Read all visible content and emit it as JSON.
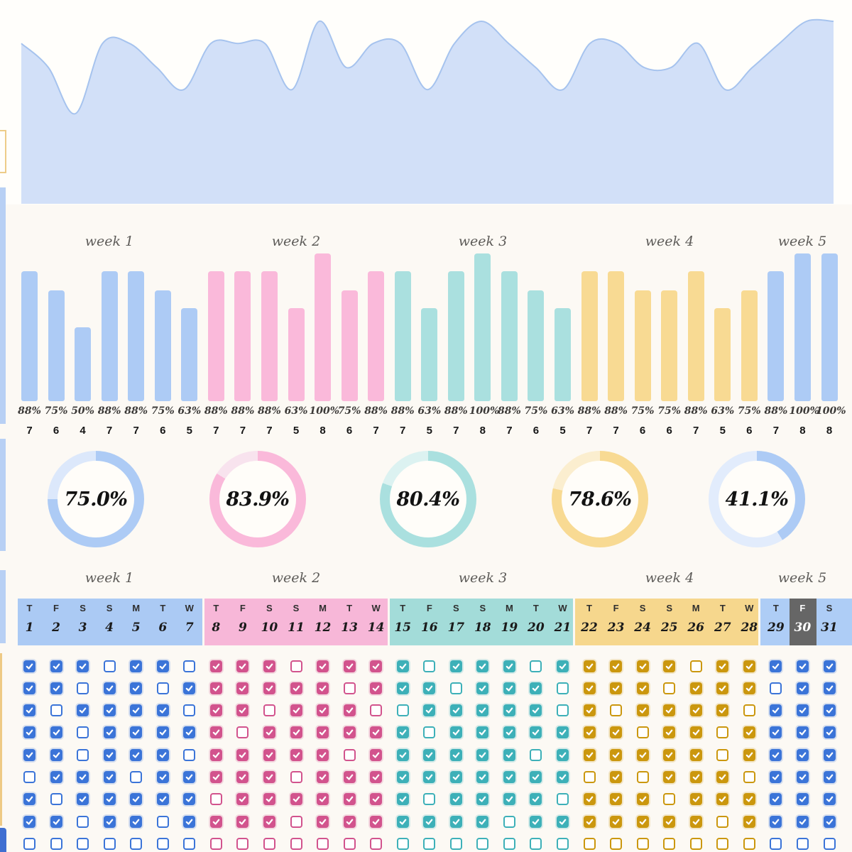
{
  "page": {
    "background": "#fcf9f4",
    "panel_background": "#fffefb",
    "donut_hole_background": "#fffdf9"
  },
  "weeks": [
    {
      "label": "week 1",
      "bar_color": "#adcbf5",
      "donut_remainder": "#dce8fb",
      "checkbox_color": "#3b74d8",
      "band_color": "#abcaf4",
      "donut_value": 75.0,
      "donut_label": "75.0%"
    },
    {
      "label": "week 2",
      "bar_color": "#fab9da",
      "donut_remainder": "#f8e3ee",
      "checkbox_color": "#d2538d",
      "band_color": "#f7b7d8",
      "donut_value": 83.9,
      "donut_label": "83.9%"
    },
    {
      "label": "week 3",
      "bar_color": "#aae0df",
      "donut_remainder": "#dcf2f1",
      "checkbox_color": "#3db0b8",
      "band_color": "#a3dcd9",
      "donut_value": 80.4,
      "donut_label": "80.4%"
    },
    {
      "label": "week 4",
      "bar_color": "#f8da93",
      "donut_remainder": "#fbeecf",
      "checkbox_color": "#cb970e",
      "band_color": "#f6d78d",
      "donut_value": 78.6,
      "donut_label": "78.6%"
    },
    {
      "label": "week 5",
      "bar_color": "#adcbf5",
      "donut_remainder": "#e2ecfc",
      "checkbox_color": "#3b74d8",
      "band_color": "#aecdf6",
      "donut_value": 41.1,
      "donut_label": "41.1%"
    }
  ],
  "chart_data": [
    {
      "type": "area",
      "name": "daily-completion-trend",
      "x": [
        1,
        2,
        3,
        4,
        5,
        6,
        7,
        8,
        9,
        10,
        11,
        12,
        13,
        14,
        15,
        16,
        17,
        18,
        19,
        20,
        21,
        22,
        23,
        24,
        25,
        26,
        27,
        28,
        29,
        30,
        31
      ],
      "values": [
        88,
        75,
        50,
        88,
        88,
        75,
        63,
        88,
        88,
        88,
        63,
        100,
        75,
        88,
        88,
        63,
        88,
        100,
        88,
        75,
        63,
        88,
        88,
        75,
        75,
        88,
        63,
        75,
        88,
        100,
        100
      ],
      "ylim": [
        50,
        100
      ],
      "fill": "#d2e0f8",
      "line": "#a6c3ee"
    },
    {
      "type": "bar",
      "name": "daily-completion-bars",
      "categories": [
        1,
        2,
        3,
        4,
        5,
        6,
        7,
        8,
        9,
        10,
        11,
        12,
        13,
        14,
        15,
        16,
        17,
        18,
        19,
        20,
        21,
        22,
        23,
        24,
        25,
        26,
        27,
        28,
        29,
        30,
        31
      ],
      "values": [
        88,
        75,
        50,
        88,
        88,
        75,
        63,
        88,
        88,
        88,
        63,
        100,
        75,
        88,
        88,
        63,
        88,
        100,
        88,
        75,
        63,
        88,
        88,
        75,
        75,
        88,
        63,
        75,
        88,
        100,
        100
      ],
      "value_labels": [
        "88%",
        "75%",
        "50%",
        "88%",
        "88%",
        "75%",
        "63%",
        "88%",
        "88%",
        "88%",
        "63%",
        "100%",
        "75%",
        "88%",
        "88%",
        "63%",
        "88%",
        "100%",
        "88%",
        "75%",
        "63%",
        "88%",
        "88%",
        "75%",
        "75%",
        "88%",
        "63%",
        "75%",
        "88%",
        "100%",
        "100%"
      ],
      "counts": [
        7,
        6,
        4,
        7,
        7,
        6,
        5,
        7,
        7,
        7,
        5,
        8,
        6,
        7,
        7,
        5,
        7,
        8,
        7,
        6,
        5,
        7,
        7,
        6,
        6,
        7,
        5,
        6,
        7,
        8,
        8
      ],
      "ylim": [
        0,
        100
      ],
      "group_labels": [
        "week 1",
        "week 2",
        "week 3",
        "week 4",
        "week 5"
      ]
    },
    {
      "type": "pie",
      "name": "weekly-completion-donuts",
      "labels": [
        "75.0%",
        "83.9%",
        "80.4%",
        "78.6%",
        "41.1%"
      ],
      "values": [
        75.0,
        83.9,
        80.4,
        78.6,
        41.1
      ],
      "categories": [
        "week 1",
        "week 2",
        "week 3",
        "week 4",
        "week 5"
      ]
    }
  ],
  "calendar": {
    "day_letter_cycle": [
      "T",
      "F",
      "S",
      "S",
      "M",
      "T",
      "W"
    ],
    "dates": [
      1,
      2,
      3,
      4,
      5,
      6,
      7,
      8,
      9,
      10,
      11,
      12,
      13,
      14,
      15,
      16,
      17,
      18,
      19,
      20,
      21,
      22,
      23,
      24,
      25,
      26,
      27,
      28,
      29,
      30,
      31
    ],
    "highlighted_date": 30,
    "highlight_bg": "#666666",
    "highlight_text": "#ffffff"
  },
  "tracker": {
    "rows": [
      [
        "1110110",
        "1110111",
        "1011101",
        "1111011",
        "111"
      ],
      [
        "1101101",
        "1111101",
        "1101110",
        "1110111",
        "011"
      ],
      [
        "1011110",
        "1101110",
        "0111110",
        "1011110",
        "111"
      ],
      [
        "1101111",
        "1011111",
        "1011111",
        "1101101",
        "111"
      ],
      [
        "1101110",
        "1111101",
        "1111101",
        "1111101",
        "111"
      ],
      [
        "0111011",
        "1110111",
        "1111111",
        "0101110",
        "111"
      ],
      [
        "1011111",
        "0111111",
        "1011110",
        "1110111",
        "111"
      ],
      [
        "1101101",
        "1110111",
        "1111011",
        "1111101",
        "111"
      ],
      [
        "0000000",
        "0000000",
        "0000000",
        "0000000",
        "000"
      ]
    ]
  }
}
